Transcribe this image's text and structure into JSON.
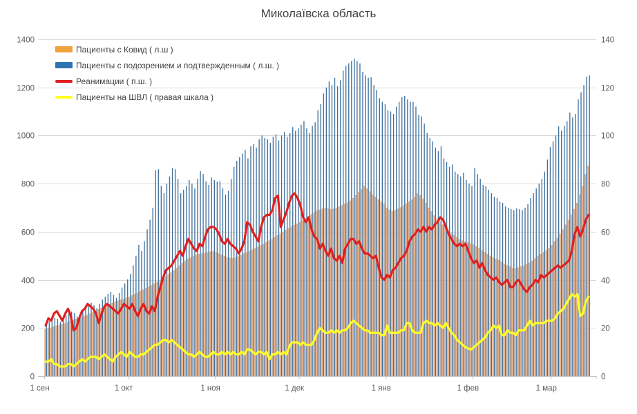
{
  "title": "Миколаївска область",
  "legend": {
    "items": [
      {
        "label": "Пациенты с Ковид ( л.ш )",
        "type": "bar",
        "color": "#F0A23E"
      },
      {
        "label": "Пациенты с подозрением и подтвержденным ( л.ш. )",
        "type": "bar",
        "color": "#2E74B5"
      },
      {
        "label": "Реанимации ( п.ш. )",
        "type": "line",
        "color": "#E01F1F"
      },
      {
        "label": "Пациенты на ШВЛ ( правая шкала )",
        "type": "line",
        "color": "#FFFF29"
      }
    ]
  },
  "chart_data": {
    "type": "combo",
    "title": "Миколаївска область",
    "days": 195,
    "x_tick_labels": [
      "1 сен",
      "1 окт",
      "1 ноя",
      "1 дек",
      "1 янв",
      "1 фев",
      "1 мар"
    ],
    "x_tick_day_index": [
      0,
      30,
      61,
      91,
      122,
      153,
      181
    ],
    "left_axis": {
      "min": 0,
      "max": 1400,
      "step": 200,
      "tick_labels": [
        "0",
        "200",
        "400",
        "600",
        "800",
        "1000",
        "1200",
        "1400"
      ]
    },
    "right_axis": {
      "min": 0,
      "max": 140,
      "step": 20,
      "tick_labels": [
        "0",
        "20",
        "40",
        "60",
        "80",
        "100",
        "120",
        "140"
      ]
    },
    "grid": true,
    "legend_position": "top-left",
    "series": [
      {
        "name": "Пациенты с Ковид ( л.ш )",
        "type": "bar",
        "axis": "left",
        "color": "#E2B08C",
        "legend_color": "#F0A23E",
        "values": [
          195,
          198,
          202,
          206,
          210,
          213,
          216,
          220,
          225,
          230,
          234,
          238,
          242,
          246,
          250,
          255,
          260,
          266,
          272,
          278,
          284,
          290,
          296,
          300,
          305,
          310,
          314,
          318,
          322,
          326,
          330,
          336,
          342,
          348,
          354,
          360,
          366,
          372,
          378,
          385,
          392,
          400,
          408,
          416,
          424,
          432,
          440,
          450,
          460,
          470,
          480,
          488,
          494,
          500,
          504,
          508,
          510,
          512,
          515,
          518,
          520,
          516,
          510,
          505,
          500,
          495,
          492,
          490,
          494,
          498,
          504,
          510,
          515,
          520,
          526,
          532,
          538,
          544,
          550,
          557,
          564,
          570,
          578,
          585,
          592,
          600,
          608,
          615,
          622,
          628,
          634,
          640,
          648,
          656,
          664,
          672,
          680,
          688,
          692,
          696,
          700,
          698,
          694,
          696,
          700,
          705,
          710,
          716,
          722,
          730,
          740,
          752,
          765,
          778,
          790,
          780,
          768,
          755,
          745,
          735,
          726,
          718,
          700,
          692,
          686,
          690,
          696,
          702,
          710,
          718,
          726,
          734,
          745,
          760,
          752,
          738,
          720,
          700,
          685,
          668,
          655,
          642,
          630,
          618,
          606,
          596,
          588,
          578,
          570,
          564,
          560,
          556,
          552,
          548,
          540,
          532,
          524,
          516,
          508,
          500,
          494,
          488,
          482,
          476,
          468,
          462,
          456,
          450,
          448,
          452,
          456,
          460,
          466,
          472,
          480,
          490,
          500,
          508,
          516,
          524,
          532,
          545,
          560,
          575,
          592,
          610,
          630,
          650,
          672,
          695,
          720,
          755,
          790,
          840,
          875
        ]
      },
      {
        "name": "Пациенты с подозрением и подтвержденным ( л.ш. )",
        "type": "bar",
        "axis": "left",
        "color": "#41719C",
        "legend_color": "#2E74B5",
        "values": [
          220,
          228,
          235,
          242,
          238,
          225,
          240,
          252,
          260,
          268,
          262,
          248,
          258,
          275,
          288,
          298,
          305,
          295,
          282,
          300,
          318,
          330,
          342,
          350,
          338,
          325,
          345,
          368,
          385,
          402,
          425,
          460,
          500,
          545,
          520,
          560,
          610,
          650,
          700,
          855,
          860,
          790,
          760,
          800,
          830,
          865,
          860,
          820,
          760,
          775,
          790,
          815,
          800,
          780,
          820,
          852,
          840,
          810,
          795,
          825,
          815,
          808,
          810,
          780,
          755,
          770,
          820,
          870,
          895,
          910,
          925,
          940,
          905,
          955,
          965,
          950,
          985,
          1000,
          990,
          985,
          970,
          995,
          1005,
          980,
          1000,
          1015,
          995,
          1010,
          1035,
          1020,
          1030,
          1045,
          1060,
          1030,
          1010,
          1040,
          1055,
          1105,
          1130,
          1175,
          1200,
          1225,
          1210,
          1240,
          1205,
          1230,
          1270,
          1290,
          1300,
          1310,
          1320,
          1310,
          1300,
          1265,
          1250,
          1240,
          1242,
          1210,
          1190,
          1155,
          1140,
          1130,
          1105,
          1100,
          1090,
          1120,
          1140,
          1160,
          1165,
          1150,
          1140,
          1140,
          1120,
          1085,
          1080,
          1050,
          1010,
          990,
          975,
          950,
          935,
          955,
          905,
          890,
          870,
          880,
          850,
          840,
          830,
          845,
          815,
          800,
          790,
          865,
          840,
          820,
          795,
          790,
          775,
          760,
          745,
          740,
          725,
          720,
          705,
          700,
          695,
          690,
          697,
          694,
          690,
          700,
          715,
          740,
          760,
          780,
          800,
          820,
          850,
          900,
          952,
          975,
          1000,
          1038,
          1020,
          1040,
          1060,
          1095,
          1075,
          1090,
          1150,
          1180,
          1210,
          1245,
          1250
        ]
      },
      {
        "name": "Реанимации ( п.ш. )",
        "type": "line",
        "axis": "right",
        "color": "#E01F1F",
        "values": [
          21,
          24,
          23,
          26,
          27,
          25,
          23,
          26,
          28,
          25,
          19,
          20,
          24,
          27,
          28,
          30,
          29,
          28,
          26,
          22,
          26,
          29,
          30,
          29,
          28,
          27,
          26,
          28,
          30,
          29,
          28,
          30,
          27,
          25,
          28,
          30,
          27,
          26,
          29,
          27,
          33,
          37,
          41,
          44,
          45,
          46,
          48,
          50,
          52,
          50,
          54,
          57,
          55,
          53,
          52,
          55,
          54,
          58,
          61,
          62,
          62,
          61,
          59,
          56,
          55,
          57,
          55,
          54,
          53,
          51,
          53,
          56,
          64,
          63,
          60,
          58,
          56,
          62,
          66,
          67,
          67,
          69,
          74,
          75,
          62,
          65,
          68,
          72,
          75,
          76,
          74,
          71,
          66,
          64,
          66,
          61,
          58,
          57,
          53,
          55,
          52,
          50,
          53,
          49,
          48,
          50,
          47,
          53,
          55,
          57,
          57,
          55,
          56,
          53,
          51,
          51,
          50,
          49,
          50,
          45,
          41,
          40,
          42,
          41,
          44,
          45,
          47,
          49,
          50,
          52,
          56,
          58,
          59,
          61,
          60,
          62,
          60,
          62,
          61,
          63,
          64,
          66,
          65,
          62,
          59,
          57,
          55,
          54,
          55,
          54,
          55,
          52,
          49,
          47,
          48,
          45,
          47,
          44,
          42,
          41,
          40,
          41,
          39,
          38,
          39,
          40,
          37,
          37,
          39,
          40,
          38,
          36,
          35,
          37,
          38,
          40,
          39,
          42,
          41,
          42,
          43,
          44,
          45,
          46,
          45,
          46,
          47,
          48,
          52,
          59,
          62,
          58,
          61,
          65,
          67
        ]
      },
      {
        "name": "Пациенты на ШВЛ ( правая шкала )",
        "type": "line",
        "axis": "right",
        "color": "#FFFF29",
        "values": [
          6,
          6,
          7,
          5,
          5,
          4,
          4,
          4,
          5,
          5,
          4,
          5,
          6,
          7,
          6,
          7,
          8,
          8,
          8,
          7,
          8,
          9,
          8,
          7,
          6,
          8,
          9,
          10,
          9,
          8,
          10,
          9,
          8,
          8,
          9,
          9,
          10,
          11,
          12,
          13,
          13,
          14,
          15,
          15,
          14,
          15,
          14,
          13,
          12,
          11,
          10,
          9,
          9,
          8,
          9,
          10,
          9,
          8,
          8,
          9,
          10,
          9,
          9,
          10,
          9,
          10,
          9,
          10,
          9,
          9,
          10,
          9,
          11,
          11,
          10,
          9,
          10,
          10,
          9,
          10,
          7,
          9,
          9,
          10,
          9,
          10,
          9,
          12,
          14,
          14,
          14,
          13,
          14,
          13,
          13,
          13,
          15,
          18,
          20,
          19,
          18,
          18,
          19,
          18,
          19,
          18,
          19,
          19,
          20,
          22,
          23,
          22,
          21,
          20,
          19,
          19,
          18,
          18,
          18,
          18,
          17,
          17,
          21,
          18,
          18,
          18,
          18,
          19,
          19,
          22,
          22,
          19,
          18,
          18,
          18,
          22,
          23,
          22,
          22,
          21,
          22,
          21,
          20,
          22,
          20,
          18,
          17,
          15,
          14,
          13,
          12,
          11.5,
          11,
          12,
          13,
          14,
          15,
          16,
          18,
          19,
          21,
          20,
          21,
          17,
          17,
          19,
          18,
          18,
          17,
          19,
          19,
          19,
          21,
          23,
          21,
          22,
          22,
          22,
          22,
          23,
          23,
          23,
          24,
          26,
          27,
          28,
          30,
          32,
          34,
          33,
          34,
          25,
          26,
          31,
          33
        ]
      }
    ]
  },
  "colors": {
    "grid": "#D9D9D9",
    "axis_line": "#BFBFBF",
    "axis_text": "#595959",
    "title_text": "#404040"
  }
}
